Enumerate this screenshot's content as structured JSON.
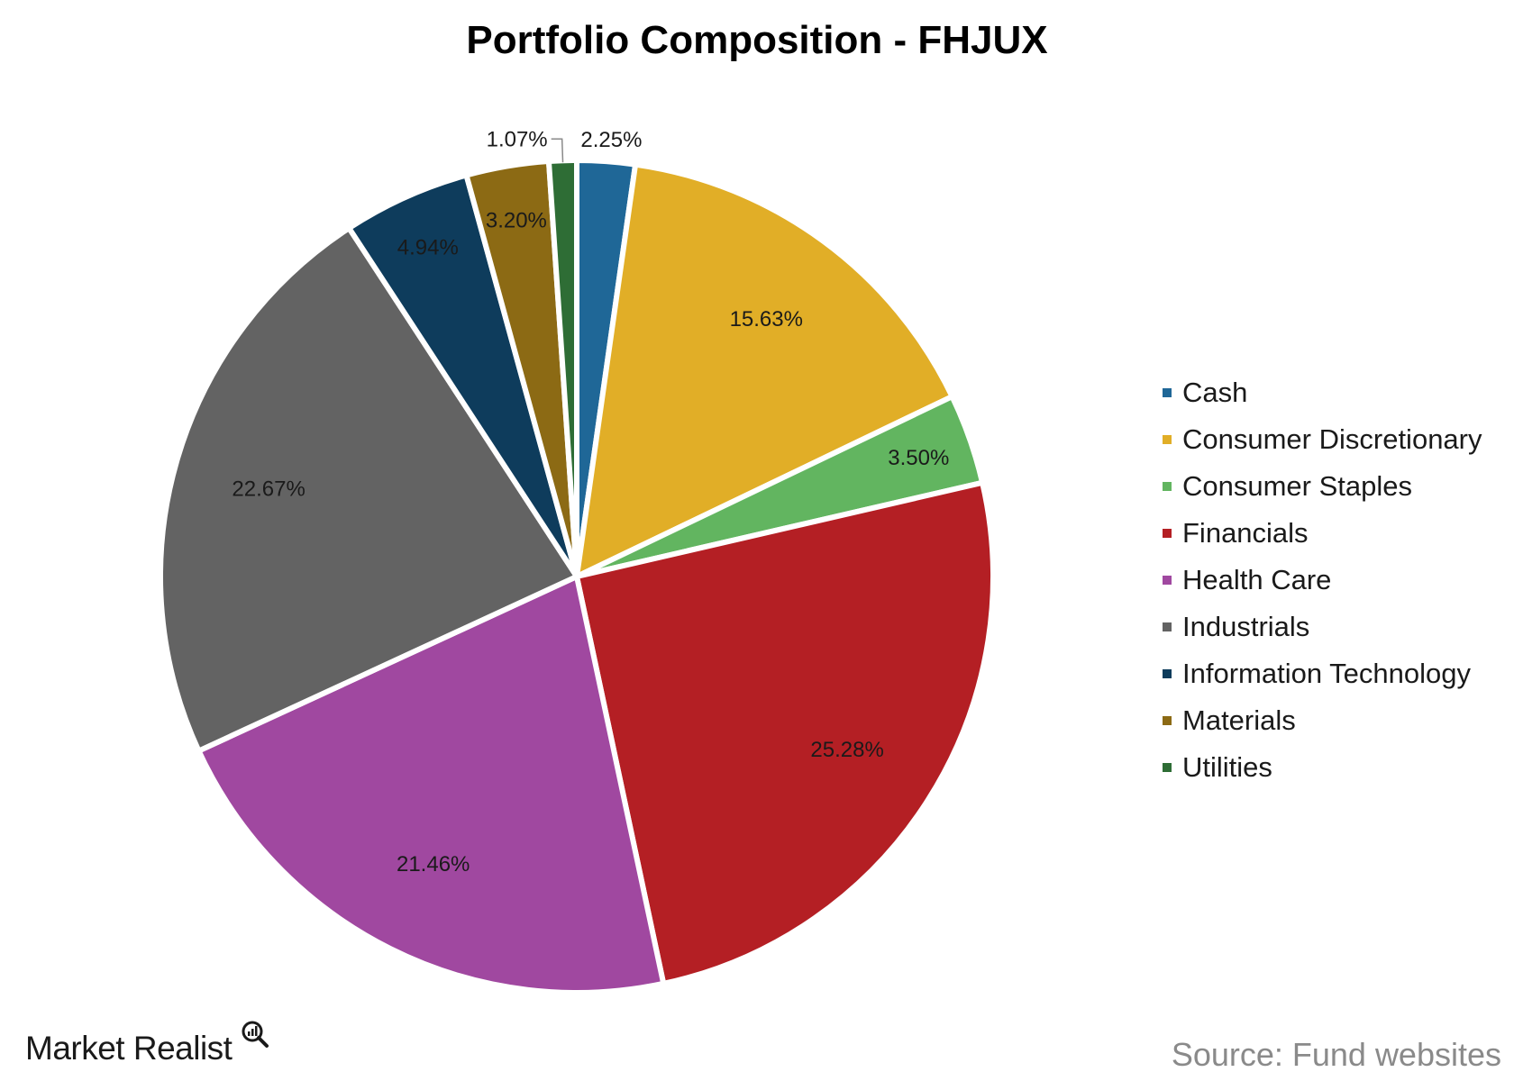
{
  "chart_data": {
    "type": "pie",
    "title": "Portfolio Composition - FHJUX",
    "categories": [
      "Cash",
      "Consumer Discretionary",
      "Consumer Staples",
      "Financials",
      "Health Care",
      "Industrials",
      "Information Technology",
      "Materials",
      "Utilities"
    ],
    "values": [
      2.25,
      15.63,
      3.5,
      25.28,
      21.46,
      22.67,
      4.94,
      3.2,
      1.07
    ],
    "labels": [
      "2.25%",
      "15.63%",
      "3.50%",
      "25.28%",
      "21.46%",
      "22.67%",
      "4.94%",
      "3.20%",
      "1.07%"
    ],
    "colors": [
      "#1F6797",
      "#E1AE27",
      "#62B560",
      "#B41F24",
      "#A048A0",
      "#636363",
      "#0E3C5C",
      "#8C6A14",
      "#2E6D35"
    ],
    "start": "12 o'clock",
    "direction": "clockwise",
    "legend_position": "right"
  },
  "footer": {
    "brand": "Market Realist",
    "source": "Source: Fund websites"
  }
}
